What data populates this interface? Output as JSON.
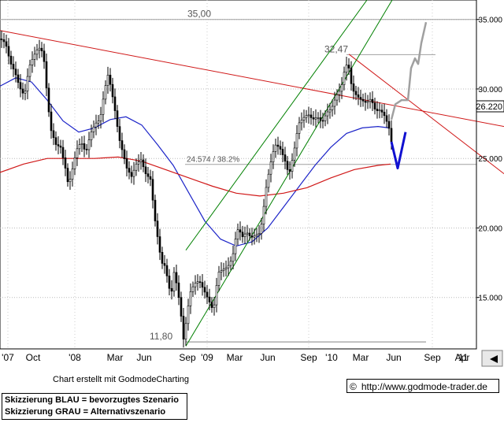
{
  "chart_data": {
    "type": "candlestick",
    "y_axis": {
      "ticks": [
        35.0,
        30.0,
        25.0,
        20.0,
        15.0
      ],
      "tick_labels": [
        "35.000",
        "30.000",
        "25.000",
        "20.000",
        "15.000"
      ],
      "position": "right",
      "range": [
        11.3,
        36.4
      ]
    },
    "x_axis": {
      "tick_labels": [
        "'07",
        "Oct",
        "'08",
        "Mar",
        "Jun",
        "Sep",
        "'09",
        "Mar",
        "Jun",
        "Sep",
        "'10",
        "Mar",
        "Jun",
        "Sep",
        "'11",
        "Apr"
      ]
    },
    "last_price": {
      "value": 26.22,
      "label": "26.220"
    },
    "levels": [
      {
        "label": "35,00",
        "value": 35.0
      },
      {
        "label": "32,47",
        "value": 32.47
      },
      {
        "label": "24.574 / 38.2%",
        "value": 24.574
      },
      {
        "label": "11,80",
        "value": 11.8
      }
    ],
    "price_path": [
      [
        0,
        33.6
      ],
      [
        6,
        33.3
      ],
      [
        12,
        31.9
      ],
      [
        18,
        31.2
      ],
      [
        24,
        30.1
      ],
      [
        30,
        29.5
      ],
      [
        36,
        31.6
      ],
      [
        42,
        32.4
      ],
      [
        48,
        33.0
      ],
      [
        54,
        32.6
      ],
      [
        60,
        28.8
      ],
      [
        64,
        27.0
      ],
      [
        70,
        26.0
      ],
      [
        76,
        25.8
      ],
      [
        82,
        24.3
      ],
      [
        86,
        23.0
      ],
      [
        92,
        24.5
      ],
      [
        96,
        25.6
      ],
      [
        102,
        26.2
      ],
      [
        108,
        25.4
      ],
      [
        114,
        26.8
      ],
      [
        120,
        27.5
      ],
      [
        126,
        27.8
      ],
      [
        132,
        30.0
      ],
      [
        136,
        31.0
      ],
      [
        140,
        30.1
      ],
      [
        146,
        28.1
      ],
      [
        150,
        26.5
      ],
      [
        156,
        25.2
      ],
      [
        160,
        24.3
      ],
      [
        166,
        23.7
      ],
      [
        172,
        24.6
      ],
      [
        178,
        24.9
      ],
      [
        184,
        23.9
      ],
      [
        190,
        23.5
      ],
      [
        196,
        20.5
      ],
      [
        200,
        19.0
      ],
      [
        204,
        17.5
      ],
      [
        208,
        17.3
      ],
      [
        212,
        16.3
      ],
      [
        216,
        15.0
      ],
      [
        220,
        16.8
      ],
      [
        224,
        15.8
      ],
      [
        228,
        14.2
      ],
      [
        232,
        12.0
      ],
      [
        236,
        13.5
      ],
      [
        240,
        15.3
      ],
      [
        246,
        16.0
      ],
      [
        252,
        16.2
      ],
      [
        258,
        15.5
      ],
      [
        264,
        14.8
      ],
      [
        270,
        14.0
      ],
      [
        276,
        16.8
      ],
      [
        282,
        17.0
      ],
      [
        288,
        17.2
      ],
      [
        294,
        17.8
      ],
      [
        298,
        19.2
      ],
      [
        302,
        20.1
      ],
      [
        306,
        19.3
      ],
      [
        312,
        19.7
      ],
      [
        318,
        19.3
      ],
      [
        324,
        19.5
      ],
      [
        328,
        19.6
      ],
      [
        332,
        20.5
      ],
      [
        336,
        22.6
      ],
      [
        342,
        24.5
      ],
      [
        348,
        26.0
      ],
      [
        354,
        25.8
      ],
      [
        360,
        25.0
      ],
      [
        366,
        23.8
      ],
      [
        372,
        25.4
      ],
      [
        378,
        27.5
      ],
      [
        384,
        27.9
      ],
      [
        390,
        28.2
      ],
      [
        396,
        27.8
      ],
      [
        402,
        28.0
      ],
      [
        408,
        27.6
      ],
      [
        414,
        28.3
      ],
      [
        420,
        28.6
      ],
      [
        426,
        29.5
      ],
      [
        432,
        30.0
      ],
      [
        438,
        31.8
      ],
      [
        442,
        31.5
      ],
      [
        446,
        30.0
      ],
      [
        452,
        29.5
      ],
      [
        458,
        29.2
      ],
      [
        464,
        29.0
      ],
      [
        470,
        29.3
      ],
      [
        476,
        28.4
      ],
      [
        482,
        28.5
      ],
      [
        488,
        28.0
      ],
      [
        494,
        27.0
      ],
      [
        496,
        26.22
      ]
    ],
    "series": [
      {
        "name": "",
        "color": "#1c24c8",
        "points": [
          [
            0,
            30.2
          ],
          [
            20,
            30.8
          ],
          [
            40,
            30.5
          ],
          [
            60,
            29.2
          ],
          [
            80,
            27.7
          ],
          [
            100,
            26.9
          ],
          [
            120,
            27.2
          ],
          [
            140,
            27.8
          ],
          [
            160,
            28.0
          ],
          [
            180,
            27.4
          ],
          [
            200,
            26.0
          ],
          [
            220,
            24.5
          ],
          [
            240,
            22.5
          ],
          [
            260,
            20.5
          ],
          [
            280,
            19.2
          ],
          [
            300,
            18.7
          ],
          [
            320,
            19.0
          ],
          [
            340,
            20.0
          ],
          [
            360,
            21.5
          ],
          [
            380,
            23.0
          ],
          [
            400,
            24.5
          ],
          [
            420,
            25.8
          ],
          [
            440,
            26.8
          ],
          [
            460,
            27.2
          ],
          [
            480,
            27.3
          ],
          [
            494,
            27.2
          ]
        ]
      },
      {
        "name": "",
        "color": "#d01818",
        "points": [
          [
            0,
            24.0
          ],
          [
            30,
            24.6
          ],
          [
            60,
            25.0
          ],
          [
            90,
            25.0
          ],
          [
            120,
            25.0
          ],
          [
            150,
            25.1
          ],
          [
            180,
            24.8
          ],
          [
            210,
            24.2
          ],
          [
            240,
            23.6
          ],
          [
            270,
            23.0
          ],
          [
            300,
            22.5
          ],
          [
            330,
            22.3
          ],
          [
            360,
            22.5
          ],
          [
            390,
            22.9
          ],
          [
            420,
            23.6
          ],
          [
            450,
            24.2
          ],
          [
            480,
            24.5
          ],
          [
            496,
            24.6
          ]
        ]
      }
    ],
    "trendlines": [
      {
        "name": "",
        "color": "#d01818",
        "points": [
          [
            0,
            34.2
          ],
          [
            640,
            27.3
          ]
        ]
      },
      {
        "name": "",
        "color": "#d01818",
        "points": [
          [
            443,
            32.5
          ],
          [
            640,
            23.9
          ]
        ]
      },
      {
        "name": "",
        "color": "#008000",
        "points": [
          [
            236,
            18.4
          ],
          [
            466,
            36.4
          ]
        ]
      },
      {
        "name": "",
        "color": "#008000",
        "points": [
          [
            236,
            11.5
          ],
          [
            498,
            36.4
          ]
        ]
      }
    ],
    "sketch_blue": {
      "color": "#1010d0",
      "points": [
        [
          497,
          26.2
        ],
        [
          505,
          24.3
        ],
        [
          515,
          26.9
        ]
      ]
    },
    "sketch_gray": {
      "color": "#a0a0a0",
      "points": [
        [
          497,
          27.8
        ],
        [
          502,
          28.9
        ],
        [
          510,
          29.2
        ],
        [
          518,
          29.2
        ],
        [
          522,
          31.5
        ],
        [
          527,
          32.2
        ],
        [
          531,
          31.8
        ],
        [
          535,
          33.3
        ],
        [
          541,
          34.8
        ]
      ]
    },
    "grid": true
  },
  "footnote": "Chart erstellt mit GodmodeCharting",
  "legend": {
    "line1": "Skizzierung BLAU = bevorzugtes Szenario",
    "line2": "Skizzierung GRAU = Alternativszenario"
  },
  "credit": {
    "symbol": "©",
    "url": "http://www.godmode-trader.de"
  },
  "nav_icon": "triangle-left-icon"
}
